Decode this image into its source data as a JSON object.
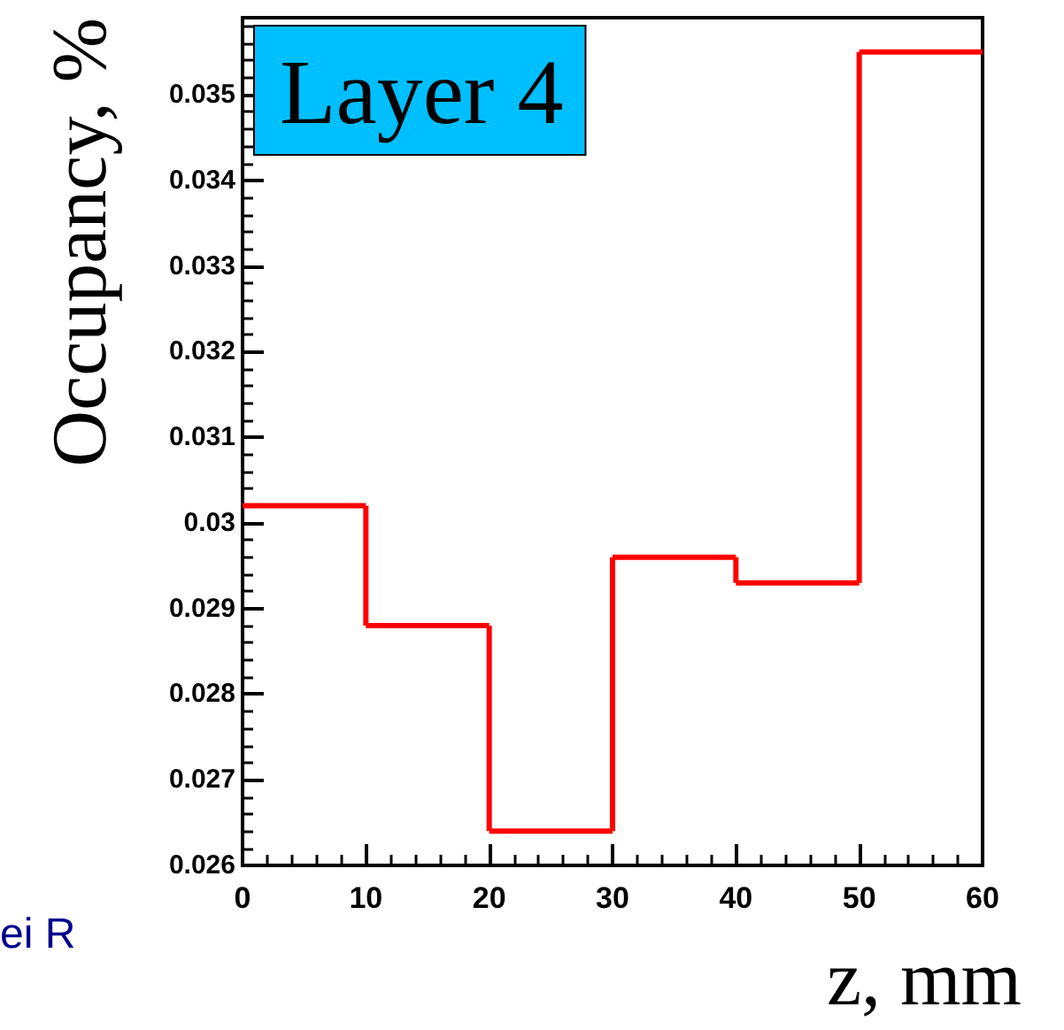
{
  "chart_data": {
    "type": "histogram",
    "xlabel": "z, mm",
    "ylabel": "Occupancy, %",
    "annotations": [
      "Layer 4",
      "ei R"
    ],
    "bins": [
      0,
      10,
      20,
      30,
      40,
      50,
      60
    ],
    "values": [
      0.0302,
      0.0288,
      0.0264,
      0.0296,
      0.0293,
      0.0355
    ],
    "color": "#ff0000",
    "xlim": [
      0,
      60
    ],
    "xticks": [
      0,
      10,
      20,
      30,
      40,
      50,
      60
    ],
    "ylim": [
      0.026,
      0.0359
    ],
    "yticks": [
      0.026,
      0.027,
      0.028,
      0.029,
      0.03,
      0.031,
      0.032,
      0.033,
      0.034,
      0.035
    ],
    "grid": false
  }
}
